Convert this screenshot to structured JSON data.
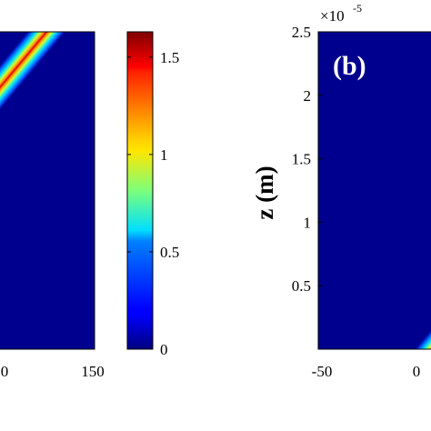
{
  "chart_data": [
    {
      "type": "heatmap",
      "panel": "left (partial)",
      "x_ticks": [
        "0",
        "150"
      ],
      "y_ticks": [],
      "band": {
        "description_direction": "diagonal ridge rising to upper-right",
        "peak_value": 1.62
      }
    },
    {
      "type": "colorbar",
      "colormap": "jet",
      "range": [
        0,
        1.63
      ],
      "ticks": [
        "0",
        "0.5",
        "1",
        "1.5"
      ],
      "tick_values": [
        0,
        0.5,
        1,
        1.5
      ]
    },
    {
      "type": "heatmap",
      "panel_label": "(b)",
      "ylabel": "z (m)",
      "y_exponent_base": "×10",
      "y_exponent_power": "-5",
      "ylim": [
        0,
        2.5
      ],
      "y_ticks": [
        "0.5",
        "1",
        "1.5",
        "2",
        "2.5"
      ],
      "y_tick_values": [
        0.5,
        1,
        1.5,
        2,
        2.5
      ],
      "x_ticks": [
        "-50",
        "0"
      ],
      "x_tick_values": [
        -50,
        0
      ],
      "band": {
        "description_direction": "ridge emerging at lower-right corner",
        "peak_value": 1.62
      }
    }
  ]
}
